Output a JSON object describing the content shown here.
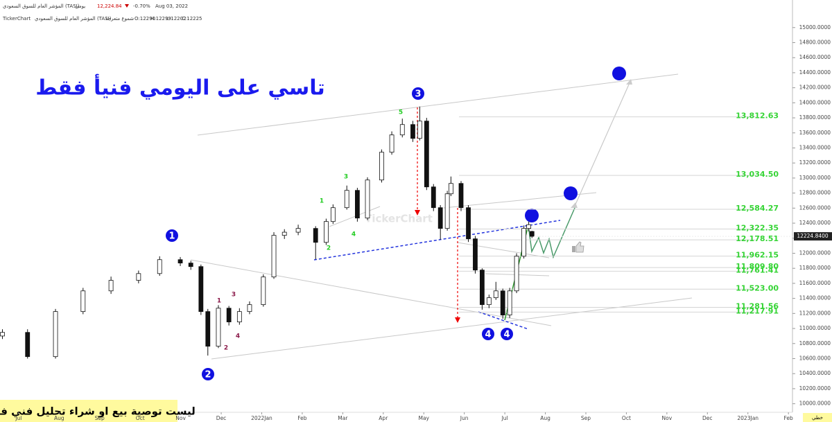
{
  "chart_data": {
    "type": "candlestick",
    "title": "تاسي على اليومي فنيأ فقط",
    "header": {
      "index_name": "المؤشر العام للسوق السعودي (TASI)",
      "period": "يومي",
      "last": "12,224.84",
      "change": "-0.70%",
      "date": "Aug 03, 2022",
      "brand": "TickerChart",
      "chart_style": "شموع متعرجة",
      "o": "O:12290",
      "h": "H:12299",
      "l": "L:12202",
      "c": "C:12225"
    },
    "x": [
      -0.4,
      0.22,
      0.91,
      1.59,
      2.28,
      2.96,
      3.48,
      3.99,
      4.25,
      4.5,
      4.67,
      4.93,
      5.19,
      5.45,
      5.7,
      6.04,
      6.3,
      6.56,
      6.9,
      7.33,
      7.59,
      7.76,
      8.1,
      8.36,
      8.61,
      8.96,
      9.21,
      9.47,
      9.73,
      9.9,
      10.07,
      10.24,
      10.41,
      10.58,
      10.67,
      10.92,
      11.1,
      11.27,
      11.44,
      11.61,
      11.78,
      11.95,
      12.12,
      12.29,
      12.47,
      12.59,
      12.67
    ],
    "open": [
      10900,
      10948,
      10626,
      11225,
      11500,
      11640,
      11730,
      11915,
      11870,
      11823,
      11225,
      10764,
      11270,
      11087,
      11225,
      11317,
      11685,
      12238,
      12280,
      12330,
      12145,
      12422,
      12606,
      12836,
      12468,
      12974,
      13343,
      13573,
      13711,
      13527,
      13757,
      12882,
      12606,
      12330,
      12790,
      12928,
      12606,
      12192,
      11777,
      11317,
      11409,
      11500,
      11179,
      11500,
      11961,
      12330,
      12290
    ],
    "high": [
      10990,
      10990,
      11260,
      11540,
      11690,
      11770,
      11960,
      11950,
      11900,
      11850,
      11260,
      11310,
      11300,
      11270,
      11360,
      11720,
      12280,
      12320,
      12380,
      12360,
      12460,
      12650,
      12900,
      12870,
      13010,
      13380,
      13620,
      13790,
      13760,
      13950,
      13800,
      12920,
      12640,
      12830,
      13020,
      12960,
      12640,
      12230,
      11800,
      11450,
      11620,
      11530,
      11540,
      12000,
      12370,
      12420,
      12299
    ],
    "low": [
      10860,
      10600,
      10600,
      11190,
      11460,
      11600,
      11700,
      11830,
      11780,
      11180,
      10640,
      10740,
      11040,
      11050,
      11190,
      11290,
      11660,
      12190,
      12240,
      11920,
      12110,
      12390,
      12580,
      12420,
      12440,
      12940,
      13310,
      13540,
      13480,
      13500,
      12840,
      12560,
      12180,
      12300,
      12760,
      12560,
      12150,
      11730,
      11250,
      11270,
      11380,
      11130,
      11140,
      11470,
      11930,
      12290,
      12202
    ],
    "close": [
      10948,
      10626,
      11225,
      11500,
      11640,
      11730,
      11915,
      11870,
      11823,
      11225,
      10764,
      11270,
      11087,
      11225,
      11317,
      11685,
      12238,
      12280,
      12330,
      12145,
      12422,
      12606,
      12836,
      12468,
      12974,
      13343,
      13573,
      13711,
      13527,
      13757,
      12882,
      12606,
      12330,
      12790,
      12928,
      12606,
      12192,
      11777,
      11317,
      11409,
      11500,
      11179,
      11500,
      11961,
      12330,
      12380,
      12225
    ],
    "up_color": "#ffffff",
    "down_color": "#111111",
    "xlim": [
      -0.46,
      19.1
    ],
    "xticks": [
      {
        "value": 0,
        "label": "Jul"
      },
      {
        "value": 1,
        "label": "Aug"
      },
      {
        "value": 2,
        "label": "Sep"
      },
      {
        "value": 3,
        "label": "Oct"
      },
      {
        "value": 4,
        "label": "Nov"
      },
      {
        "value": 5,
        "label": "Dec"
      },
      {
        "value": 6,
        "label": "2022Jan"
      },
      {
        "value": 7,
        "label": "Feb"
      },
      {
        "value": 8,
        "label": "Mar"
      },
      {
        "value": 9,
        "label": "Apr"
      },
      {
        "value": 10,
        "label": "May"
      },
      {
        "value": 11,
        "label": "Jun"
      },
      {
        "value": 12,
        "label": "Jul"
      },
      {
        "value": 13,
        "label": "Aug"
      },
      {
        "value": 14,
        "label": "Sep"
      },
      {
        "value": 15,
        "label": "Oct"
      },
      {
        "value": 16,
        "label": "Nov"
      },
      {
        "value": 17,
        "label": "Dec"
      },
      {
        "value": 18,
        "label": "2023Jan"
      },
      {
        "value": 19,
        "label": "Feb"
      }
    ],
    "ylim": [
      9840,
      15090
    ],
    "yticks": [
      {
        "value": 10000,
        "label": "10000.0000"
      },
      {
        "value": 10200,
        "label": "10200.0000"
      },
      {
        "value": 10400,
        "label": "10400.0000"
      },
      {
        "value": 10600,
        "label": "10600.0000"
      },
      {
        "value": 10800,
        "label": "10800.0000"
      },
      {
        "value": 11000,
        "label": "11000.0000"
      },
      {
        "value": 11200,
        "label": "11200.0000"
      },
      {
        "value": 11400,
        "label": "11400.0000"
      },
      {
        "value": 11600,
        "label": "11600.0000"
      },
      {
        "value": 11800,
        "label": "11800.0000"
      },
      {
        "value": 12000,
        "label": "12000.0000"
      },
      {
        "value": 12200,
        "label": "12200.0000"
      },
      {
        "value": 12400,
        "label": "12400.0000"
      },
      {
        "value": 12600,
        "label": "12600.0000"
      },
      {
        "value": 12800,
        "label": "12800.0000"
      },
      {
        "value": 13000,
        "label": "13000.0000"
      },
      {
        "value": 13200,
        "label": "13200.0000"
      },
      {
        "value": 13400,
        "label": "13400.0000"
      },
      {
        "value": 13600,
        "label": "13600.0000"
      },
      {
        "value": 13800,
        "label": "13800.0000"
      },
      {
        "value": 14000,
        "label": "14000.0000"
      },
      {
        "value": 14200,
        "label": "14200.0000"
      },
      {
        "value": 14400,
        "label": "14400.0000"
      },
      {
        "value": 14600,
        "label": "14600.0000"
      },
      {
        "value": 14800,
        "label": "14800.0000"
      },
      {
        "value": 15000,
        "label": "15000.0000"
      }
    ],
    "levels": [
      {
        "value": 13812.63,
        "label": "13,812.63"
      },
      {
        "value": 13034.5,
        "label": "13,034.50"
      },
      {
        "value": 12584.27,
        "label": "12,584.27"
      },
      {
        "value": 12322.35,
        "label": "12,322.35"
      },
      {
        "value": 12178.51,
        "label": "12,178.51"
      },
      {
        "value": 11962.15,
        "label": "11,962.15"
      },
      {
        "value": 11809.8,
        "label": "11,809.80"
      },
      {
        "value": 11761.41,
        "label": "11,761.41"
      },
      {
        "value": 11523,
        "label": "11,523.00"
      },
      {
        "value": 11281.56,
        "label": "11,281.56"
      },
      {
        "value": 11217.91,
        "label": "11,217.91"
      }
    ],
    "level_color": "#35d435",
    "last_price": {
      "value": 12224.84,
      "label": "12224.8400"
    },
    "wave_labels": {
      "major": [
        "1",
        "2",
        "3",
        "4",
        "4"
      ],
      "minor_green": [
        "1",
        "2",
        "3",
        "4",
        "5"
      ],
      "minor_purple": [
        "1",
        "2",
        "3",
        "4"
      ]
    },
    "watermark": "TickerChart",
    "disclaimer": "ليست توصية بيع او شراء تحليل فني فقط",
    "mode_label": "خطي"
  }
}
